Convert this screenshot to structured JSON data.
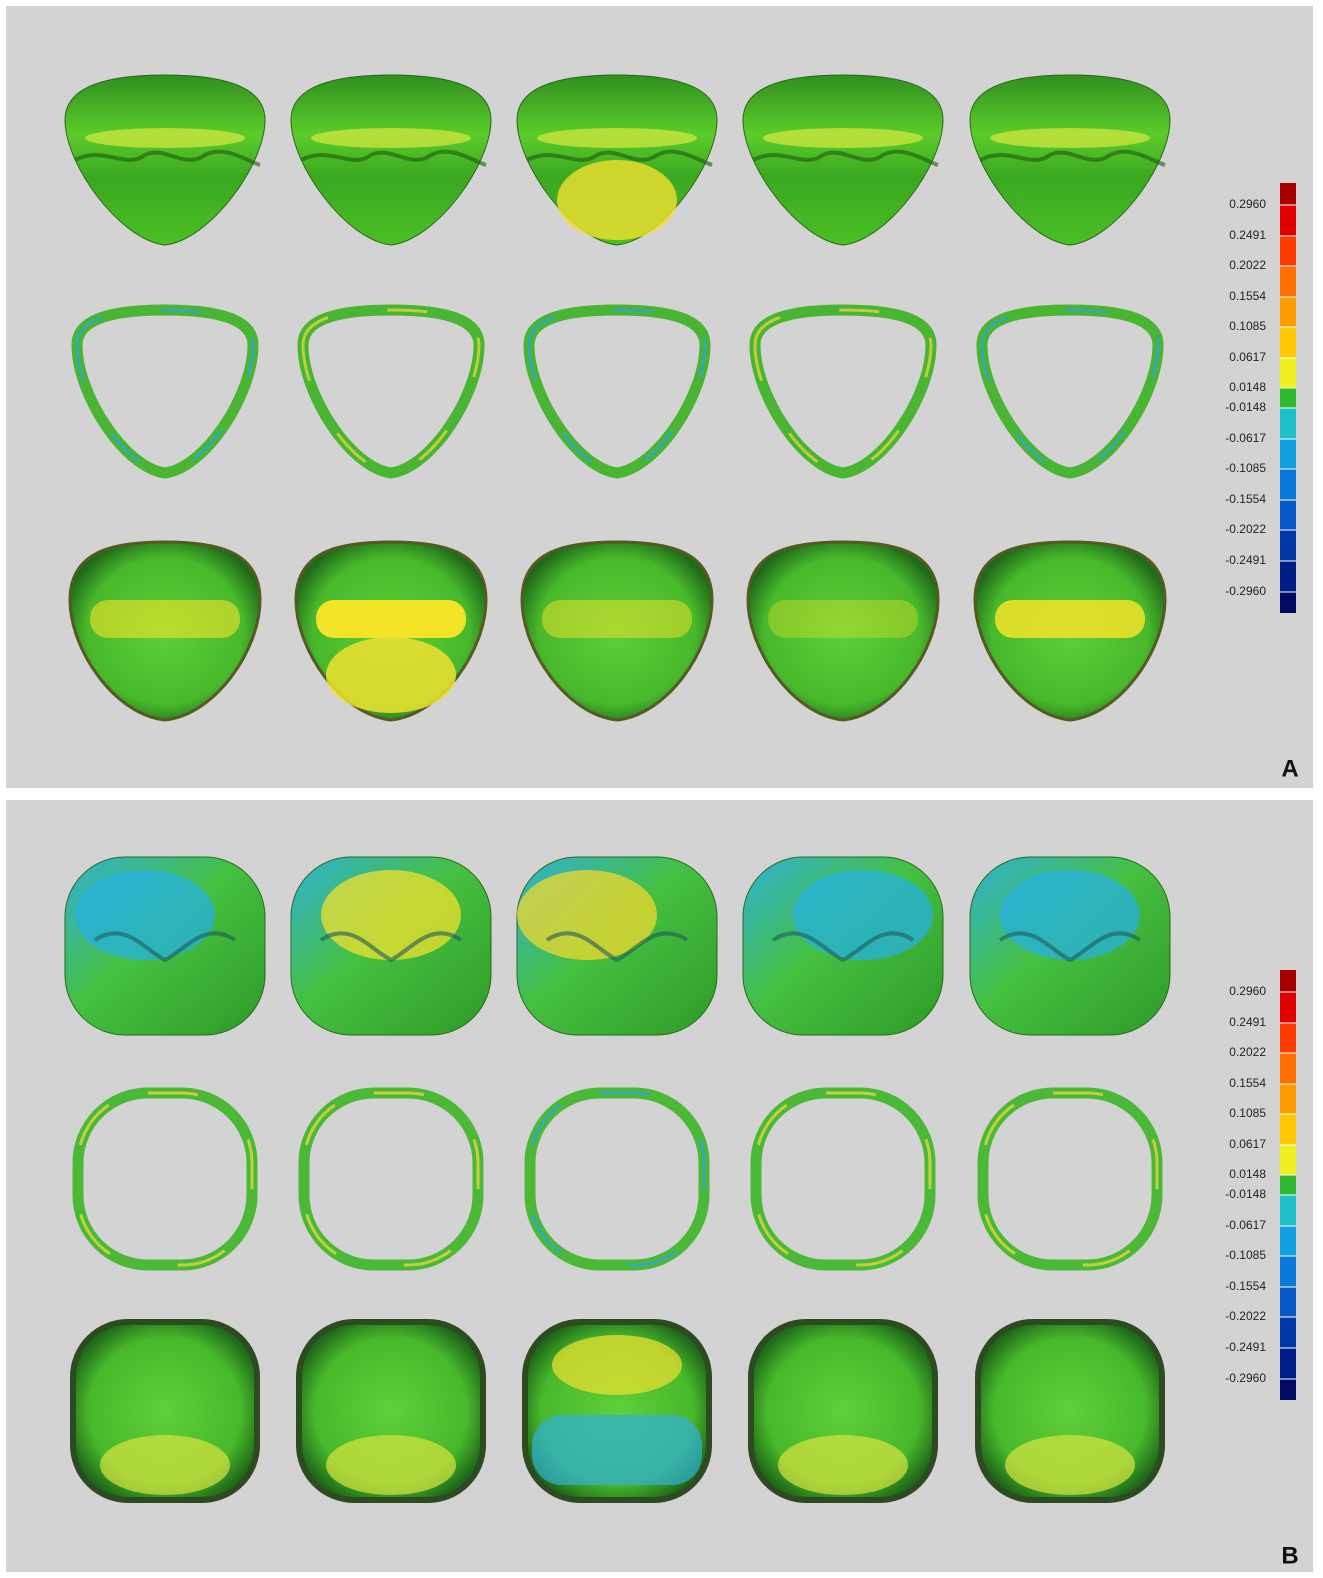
{
  "panels": [
    {
      "label": "A",
      "scale": [
        "0.2960",
        "0.2491",
        "0.2022",
        "0.1554",
        "0.1085",
        "0.0617",
        "0.0148",
        "-0.0148",
        "-0.0617",
        "-0.1085",
        "-0.1554",
        "-0.2022",
        "-0.2491",
        "-0.2960"
      ]
    },
    {
      "label": "B",
      "scale": [
        "0.2960",
        "0.2491",
        "0.2022",
        "0.1554",
        "0.1085",
        "0.0617",
        "0.0148",
        "-0.0148",
        "-0.0617",
        "-0.1085",
        "-0.1554",
        "-0.2022",
        "-0.2491",
        "-0.2960"
      ]
    }
  ]
}
